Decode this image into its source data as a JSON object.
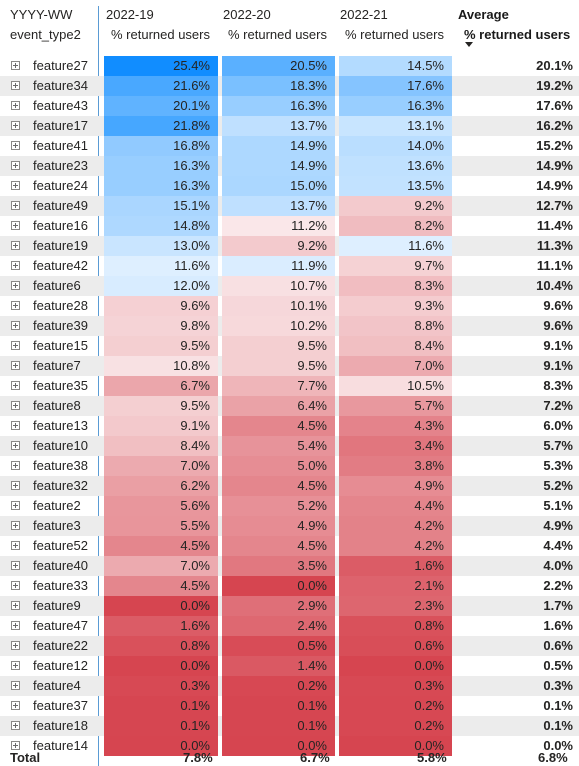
{
  "header": {
    "row_field": "YYYY-WW",
    "col_field": "event_type2",
    "columns": [
      {
        "period": "2022-19",
        "measure": "% returned users"
      },
      {
        "period": "2022-20",
        "measure": "% returned users"
      },
      {
        "period": "2022-21",
        "measure": "% returned users"
      }
    ],
    "average_title": "Average",
    "average_measure": "% returned users",
    "sort_icon": "sort-descending-icon"
  },
  "colors": {
    "high": "#118dff",
    "mid": "#ffffff",
    "low": "#d64550",
    "row_shade": "#ececec",
    "separator": "#5a9bd4"
  },
  "rows": [
    {
      "label": "feature27",
      "v": [
        "25.4%",
        "20.5%",
        "14.5%"
      ],
      "avg": "20.1%"
    },
    {
      "label": "feature34",
      "v": [
        "21.6%",
        "18.3%",
        "17.6%"
      ],
      "avg": "19.2%"
    },
    {
      "label": "feature43",
      "v": [
        "20.1%",
        "16.3%",
        "16.3%"
      ],
      "avg": "17.6%"
    },
    {
      "label": "feature17",
      "v": [
        "21.8%",
        "13.7%",
        "13.1%"
      ],
      "avg": "16.2%"
    },
    {
      "label": "feature41",
      "v": [
        "16.8%",
        "14.9%",
        "14.0%"
      ],
      "avg": "15.2%"
    },
    {
      "label": "feature23",
      "v": [
        "16.3%",
        "14.9%",
        "13.6%"
      ],
      "avg": "14.9%"
    },
    {
      "label": "feature24",
      "v": [
        "16.3%",
        "15.0%",
        "13.5%"
      ],
      "avg": "14.9%"
    },
    {
      "label": "feature49",
      "v": [
        "15.1%",
        "13.7%",
        "9.2%"
      ],
      "avg": "12.7%"
    },
    {
      "label": "feature16",
      "v": [
        "14.8%",
        "11.2%",
        "8.2%"
      ],
      "avg": "11.4%"
    },
    {
      "label": "feature19",
      "v": [
        "13.0%",
        "9.2%",
        "11.6%"
      ],
      "avg": "11.3%"
    },
    {
      "label": "feature42",
      "v": [
        "11.6%",
        "11.9%",
        "9.7%"
      ],
      "avg": "11.1%"
    },
    {
      "label": "feature6",
      "v": [
        "12.0%",
        "10.7%",
        "8.3%"
      ],
      "avg": "10.4%"
    },
    {
      "label": "feature28",
      "v": [
        "9.6%",
        "10.1%",
        "9.3%"
      ],
      "avg": "9.6%"
    },
    {
      "label": "feature39",
      "v": [
        "9.8%",
        "10.2%",
        "8.8%"
      ],
      "avg": "9.6%"
    },
    {
      "label": "feature15",
      "v": [
        "9.5%",
        "9.5%",
        "8.4%"
      ],
      "avg": "9.1%"
    },
    {
      "label": "feature7",
      "v": [
        "10.8%",
        "9.5%",
        "7.0%"
      ],
      "avg": "9.1%"
    },
    {
      "label": "feature35",
      "v": [
        "6.7%",
        "7.7%",
        "10.5%"
      ],
      "avg": "8.3%"
    },
    {
      "label": "feature8",
      "v": [
        "9.5%",
        "6.4%",
        "5.7%"
      ],
      "avg": "7.2%"
    },
    {
      "label": "feature13",
      "v": [
        "9.1%",
        "4.5%",
        "4.3%"
      ],
      "avg": "6.0%"
    },
    {
      "label": "feature10",
      "v": [
        "8.4%",
        "5.4%",
        "3.4%"
      ],
      "avg": "5.7%"
    },
    {
      "label": "feature38",
      "v": [
        "7.0%",
        "5.0%",
        "3.8%"
      ],
      "avg": "5.3%"
    },
    {
      "label": "feature32",
      "v": [
        "6.2%",
        "4.5%",
        "4.9%"
      ],
      "avg": "5.2%"
    },
    {
      "label": "feature2",
      "v": [
        "5.6%",
        "5.2%",
        "4.4%"
      ],
      "avg": "5.1%"
    },
    {
      "label": "feature3",
      "v": [
        "5.5%",
        "4.9%",
        "4.2%"
      ],
      "avg": "4.9%"
    },
    {
      "label": "feature52",
      "v": [
        "4.5%",
        "4.5%",
        "4.2%"
      ],
      "avg": "4.4%"
    },
    {
      "label": "feature40",
      "v": [
        "7.0%",
        "3.5%",
        "1.6%"
      ],
      "avg": "4.0%"
    },
    {
      "label": "feature33",
      "v": [
        "4.5%",
        "0.0%",
        "2.1%"
      ],
      "avg": "2.2%"
    },
    {
      "label": "feature9",
      "v": [
        "0.0%",
        "2.9%",
        "2.3%"
      ],
      "avg": "1.7%"
    },
    {
      "label": "feature47",
      "v": [
        "1.6%",
        "2.4%",
        "0.8%"
      ],
      "avg": "1.6%"
    },
    {
      "label": "feature22",
      "v": [
        "0.8%",
        "0.5%",
        "0.6%"
      ],
      "avg": "0.6%"
    },
    {
      "label": "feature12",
      "v": [
        "0.0%",
        "1.4%",
        "0.0%"
      ],
      "avg": "0.5%"
    },
    {
      "label": "feature4",
      "v": [
        "0.3%",
        "0.2%",
        "0.3%"
      ],
      "avg": "0.3%"
    },
    {
      "label": "feature37",
      "v": [
        "0.1%",
        "0.1%",
        "0.2%"
      ],
      "avg": "0.1%"
    },
    {
      "label": "feature18",
      "v": [
        "0.1%",
        "0.1%",
        "0.2%"
      ],
      "avg": "0.1%"
    },
    {
      "label": "feature14",
      "v": [
        "0.0%",
        "0.0%",
        "0.0%"
      ],
      "avg": "0.0%"
    }
  ],
  "total": {
    "label": "Total",
    "v": [
      "7.8%",
      "6.7%",
      "5.8%"
    ],
    "avg": "6.8%"
  }
}
